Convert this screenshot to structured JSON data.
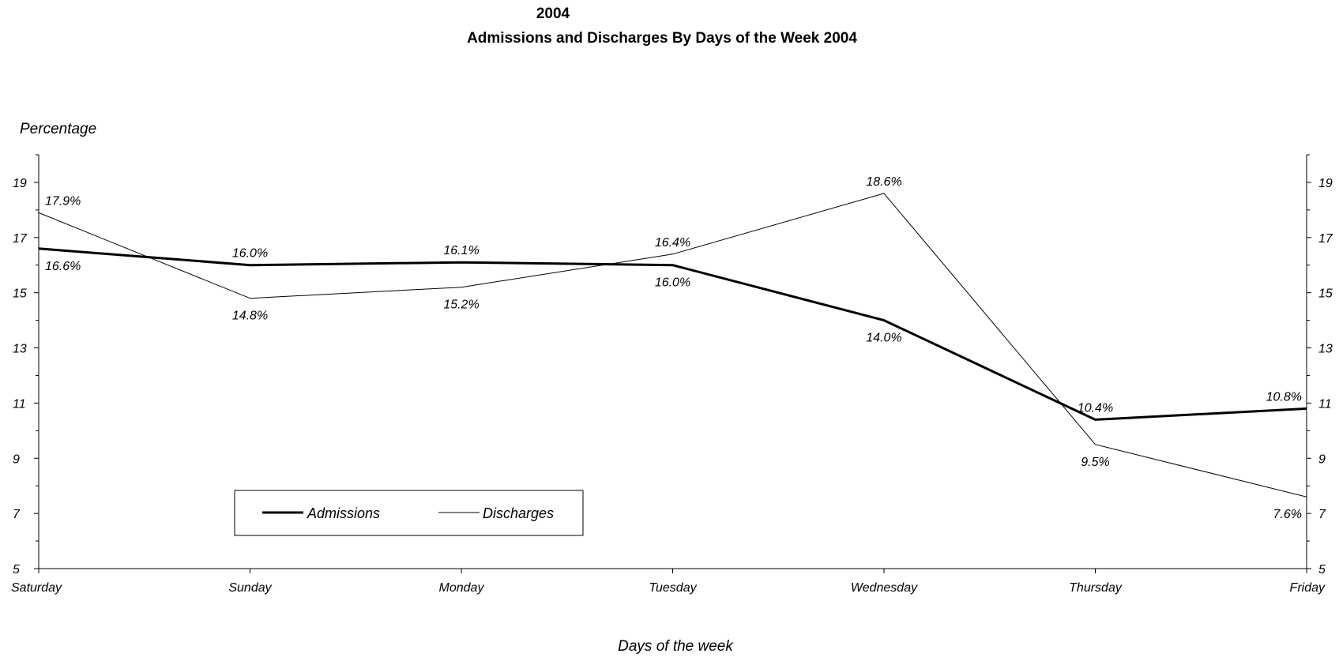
{
  "chart_data": {
    "type": "line",
    "title_top": "2004",
    "title": "Admissions and Discharges By Days of the Week 2004",
    "ylabel": "Percentage",
    "xlabel": "Days of the week",
    "categories": [
      "Saturday",
      "Sunday",
      "Monday",
      "Tuesday",
      "Wednesday",
      "Thursday",
      "Friday"
    ],
    "ylim": [
      5,
      20
    ],
    "yticks": [
      5,
      7,
      9,
      11,
      13,
      15,
      17,
      19
    ],
    "ytick_labels": [
      "5",
      "7",
      "9",
      "11",
      "13",
      "15",
      "17",
      "19"
    ],
    "dual_y_axis": true,
    "grid": false,
    "legend_position": "bottom-left",
    "series": [
      {
        "name": "Admissions",
        "values": [
          16.6,
          16.0,
          16.1,
          16.0,
          14.0,
          10.4,
          10.8
        ],
        "labels": [
          "16.6%",
          "16.0%",
          "16.1%",
          "16.0%",
          "14.0%",
          "10.4%",
          "10.8%"
        ],
        "line_weight": "thick",
        "color": "#000000"
      },
      {
        "name": "Discharges",
        "values": [
          17.9,
          14.8,
          15.2,
          16.4,
          18.6,
          9.5,
          7.6
        ],
        "labels": [
          "17.9%",
          "14.8%",
          "15.2%",
          "16.4%",
          "18.6%",
          "9.5%",
          "7.6%"
        ],
        "line_weight": "thin",
        "color": "#000000"
      }
    ]
  }
}
